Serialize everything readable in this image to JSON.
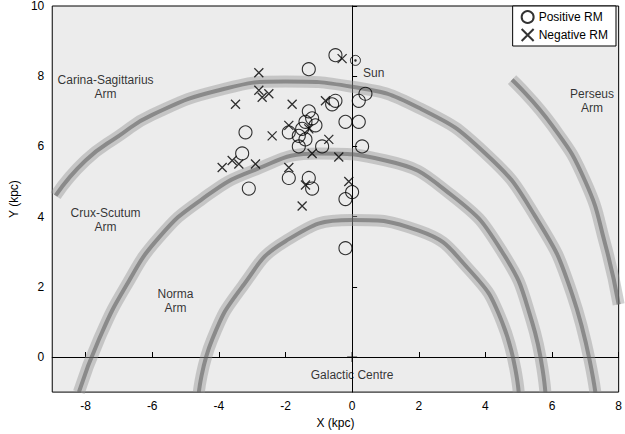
{
  "chart_data": {
    "type": "scatter",
    "xlabel": "X (kpc)",
    "ylabel": "Y (kpc)",
    "xlim": [
      -9,
      8
    ],
    "ylim": [
      -1,
      10
    ],
    "xticks": [
      -8,
      -6,
      -4,
      -2,
      0,
      2,
      4,
      6,
      8
    ],
    "yticks": [
      0,
      2,
      4,
      6,
      8,
      10
    ],
    "legend": "upper right",
    "series": [
      {
        "name": "Positive RM",
        "marker": "circle",
        "color": "#000000",
        "x": [
          -0.5,
          -1.3,
          0.4,
          -0.5,
          -0.6,
          0.2,
          -0.2,
          0.2,
          -1.3,
          -1.2,
          -1.4,
          -1.5,
          -1.1,
          -1.9,
          -1.6,
          -1.4,
          -1.6,
          -0.9,
          0.3,
          -3.2,
          -3.3,
          -1.3,
          -1.9,
          -3.1,
          -1.2,
          0.0,
          -0.2,
          -0.2
        ],
        "y": [
          8.6,
          8.2,
          7.5,
          7.3,
          7.2,
          7.3,
          6.7,
          6.7,
          7.0,
          6.8,
          6.7,
          6.5,
          6.6,
          6.4,
          6.3,
          6.2,
          6.0,
          6.0,
          6.0,
          6.4,
          5.8,
          5.1,
          5.1,
          4.8,
          4.8,
          4.7,
          4.5,
          3.1
        ]
      },
      {
        "name": "Negative RM",
        "marker": "cross",
        "color": "#000000",
        "x": [
          -2.8,
          -0.3,
          -2.8,
          -2.7,
          -2.5,
          -3.5,
          -1.8,
          -0.8,
          -1.9,
          -1.3,
          -2.4,
          -0.7,
          -1.2,
          -0.4,
          -3.6,
          -3.4,
          -2.9,
          -3.9,
          -1.9,
          -1.4,
          -0.1,
          -1.5
        ],
        "y": [
          8.1,
          8.5,
          7.6,
          7.4,
          7.5,
          7.2,
          7.2,
          7.3,
          6.6,
          6.5,
          6.3,
          6.2,
          5.8,
          5.7,
          5.6,
          5.5,
          5.5,
          5.4,
          5.4,
          4.9,
          5.0,
          4.3
        ]
      }
    ],
    "arms": [
      {
        "name": "Carina-Sagittarius Arm",
        "label_x": -7.4,
        "label_y": 7.7,
        "x": [
          -8.9,
          -8,
          -7,
          -6,
          -4,
          -2,
          0,
          2,
          4,
          5.5,
          6.6,
          7.3
        ],
        "y": [
          4.6,
          5.6,
          6.3,
          6.9,
          7.6,
          7.85,
          7.7,
          7.1,
          5.8,
          4.0,
          1.8,
          -1
        ]
      },
      {
        "name": "Crux-Scutum Arm",
        "label_x": -7.4,
        "label_y": 3.9,
        "x": [
          -8.2,
          -7.6,
          -6.8,
          -5.8,
          -4.5,
          -3,
          -1,
          1,
          3,
          4.5,
          5.4,
          5.8
        ],
        "y": [
          -1,
          0.5,
          2,
          3.4,
          4.5,
          5.3,
          5.8,
          5.6,
          4.6,
          3,
          1,
          -1
        ]
      },
      {
        "name": "Norma Arm",
        "label_x": -5.3,
        "label_y": 1.6,
        "x": [
          -4.6,
          -4.2,
          -3.3,
          -2,
          0,
          2,
          3.5,
          4.5,
          5
        ],
        "y": [
          -1,
          0.5,
          2.0,
          3.3,
          3.9,
          3.6,
          2.5,
          1,
          -1
        ]
      },
      {
        "name": "Perseus Arm",
        "label_x": 7.2,
        "label_y": 7.3,
        "x": [
          4.8,
          6,
          7,
          7.6,
          8.0
        ],
        "y": [
          7.9,
          6.6,
          5,
          3.2,
          1.5
        ]
      }
    ],
    "annotations": [
      {
        "text": "Sun",
        "x": 0.1,
        "y": 8.45,
        "label_x": 0.65,
        "label_y": 8.1,
        "marker": "sun"
      },
      {
        "text": "Galactic Centre",
        "x": 0,
        "y": 0,
        "label_x": 0,
        "label_y": -0.5,
        "marker": "plus"
      }
    ]
  }
}
